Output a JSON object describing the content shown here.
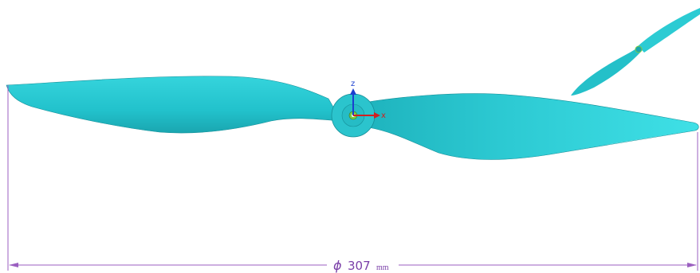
{
  "axes": {
    "z": "z",
    "x": "x"
  },
  "dimension": {
    "symbol": "ϕ",
    "value": 307,
    "unit": "mm"
  }
}
